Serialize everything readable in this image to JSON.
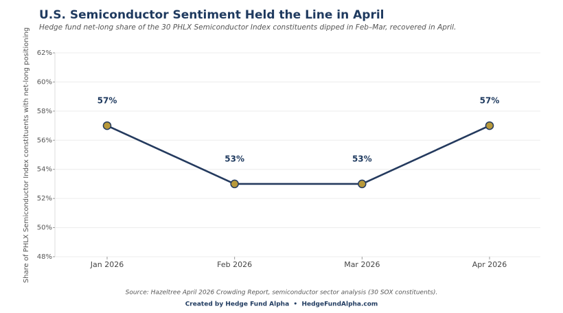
{
  "chart_data": {
    "type": "line",
    "title": "U.S. Semiconductor Sentiment Held the Line in April",
    "subtitle": "Hedge fund net-long share of the 30 PHLX Semiconductor Index constituents dipped in Feb–Mar, recovered in April.",
    "y_label": "Share of PHLX Semiconductor Index constituents with net-long positioning",
    "categories": [
      "Jan 2026",
      "Feb 2026",
      "Mar 2026",
      "Apr 2026"
    ],
    "values": [
      57,
      53,
      53,
      57
    ],
    "value_labels": [
      "57%",
      "53%",
      "53%",
      "57%"
    ],
    "color": "#243a5e",
    "marker_color": "#b8993a",
    "ylim": [
      48,
      62
    ],
    "yticks": [
      {
        "value": 48,
        "label": "48%"
      },
      {
        "value": 50,
        "label": "50%"
      },
      {
        "value": 52,
        "label": "52%"
      },
      {
        "value": 54,
        "label": "54%"
      },
      {
        "value": 56,
        "label": "56%"
      },
      {
        "value": 58,
        "label": "58%"
      },
      {
        "value": 60,
        "label": "60%"
      },
      {
        "value": 62,
        "label": "62%"
      }
    ],
    "grid": true,
    "source": "Source: Hazeltree April 2026 Crowding Report, semiconductor sector analysis (30 SOX constituents).",
    "credit": "Created by Hedge Fund Alpha  •  HedgeFundAlpha.com"
  }
}
